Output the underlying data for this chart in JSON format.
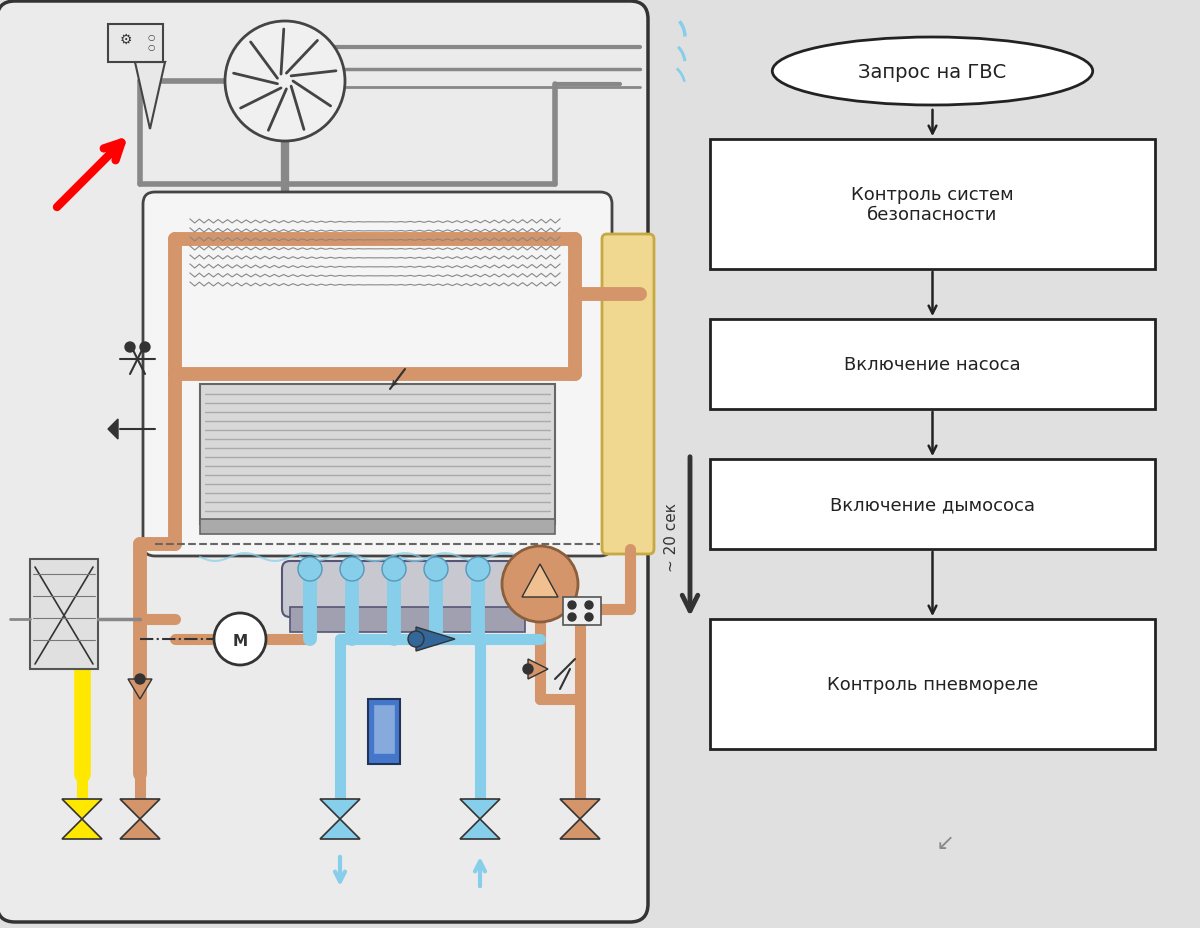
{
  "bg_color": "#e0e0e0",
  "coil_color": "#D4956A",
  "blue_color": "#87CEEB",
  "yellow_color": "#FFE800",
  "flowchart": {
    "oval_text": "Запрос на ГВС",
    "boxes": [
      "Контроль систем\nбезопасности",
      "Включение насоса",
      "Включение дымососа",
      "Контроль пневмореле"
    ],
    "box_facecolor": "#ffffff",
    "box_edgecolor": "#222222",
    "text_color": "#222222",
    "fontsize": 13
  }
}
